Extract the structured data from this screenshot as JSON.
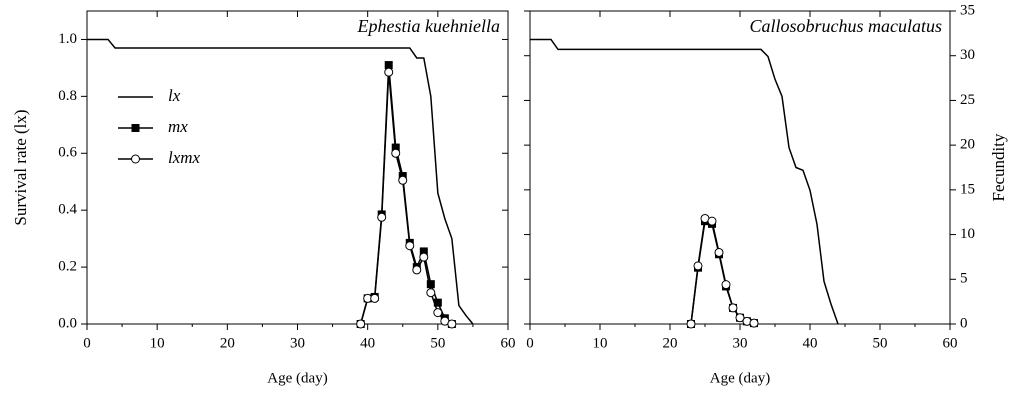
{
  "chart_data": [
    {
      "type": "line",
      "title": "Ephestia kuehniella",
      "x_label": "Age (day)",
      "y_label": "Survival rate (lx)",
      "xlim": [
        0,
        60
      ],
      "xticks": [
        0,
        10,
        20,
        30,
        40,
        50,
        60
      ],
      "ylim": [
        0,
        1.1
      ],
      "yticks": [
        {
          "value": 0,
          "label": "0.0"
        },
        0.2,
        0.4,
        0.6,
        0.8,
        {
          "value": 1,
          "label": "1.0"
        }
      ],
      "legend": true,
      "series": [
        {
          "name": "lx",
          "color": "#000000",
          "marker": "none",
          "x": [
            0,
            3,
            4,
            46,
            47,
            48,
            49,
            50,
            51,
            52,
            53,
            54,
            55
          ],
          "values": [
            1,
            1,
            0.97,
            0.97,
            0.935,
            0.935,
            0.8,
            0.46,
            0.37,
            0.3,
            0.065,
            0.03,
            0
          ]
        },
        {
          "name": "mx",
          "color": "#000000",
          "marker": "square",
          "x": [
            39,
            40,
            41,
            42,
            43,
            44,
            45,
            46,
            47,
            48,
            49,
            50,
            51,
            52
          ],
          "values": [
            0,
            0.09,
            0.095,
            0.385,
            0.91,
            0.62,
            0.52,
            0.285,
            0.2,
            0.255,
            0.14,
            0.075,
            0.02,
            0
          ]
        },
        {
          "name": "lxmx",
          "color": "#000000",
          "marker": "circle",
          "x": [
            39,
            40,
            41,
            42,
            43,
            44,
            45,
            46,
            47,
            48,
            49,
            50,
            51,
            52
          ],
          "values": [
            0,
            0.09,
            0.09,
            0.375,
            0.885,
            0.6,
            0.505,
            0.275,
            0.19,
            0.235,
            0.11,
            0.04,
            0.01,
            0
          ]
        }
      ]
    },
    {
      "type": "line",
      "title": "Callosobruchus maculatus",
      "x_label": "Age (day)",
      "y2_label": "Fecundity",
      "xlim": [
        0,
        60
      ],
      "xticks": [
        0,
        10,
        20,
        30,
        40,
        50,
        60
      ],
      "ylim": [
        0,
        1.1
      ],
      "y2lim": [
        0,
        35
      ],
      "y2ticks": [
        0,
        5,
        10,
        15,
        20,
        25,
        30,
        35
      ],
      "legend": false,
      "series": [
        {
          "name": "lx",
          "color": "#000000",
          "marker": "none",
          "x": [
            0,
            3,
            4,
            33,
            34,
            35,
            36,
            37,
            38,
            39,
            40,
            41,
            42,
            43,
            44
          ],
          "values": [
            1,
            1,
            0.965,
            0.965,
            0.94,
            0.86,
            0.8,
            0.62,
            0.55,
            0.54,
            0.47,
            0.35,
            0.15,
            0.07,
            0
          ]
        },
        {
          "name": "mx",
          "color": "#000000",
          "marker": "square",
          "axis": "y2",
          "x": [
            23,
            24,
            25,
            26,
            27,
            28,
            29,
            30,
            31,
            32
          ],
          "values": [
            0,
            6.3,
            11.5,
            11.2,
            7.8,
            4.2,
            1.8,
            0.7,
            0.3,
            0.1
          ]
        },
        {
          "name": "lxmx",
          "color": "#000000",
          "marker": "circle",
          "axis": "y2",
          "x": [
            23,
            24,
            25,
            26,
            27,
            28,
            29,
            30,
            31,
            32
          ],
          "values": [
            0,
            6.5,
            11.8,
            11.5,
            8,
            4.4,
            1.8,
            0.7,
            0.3,
            0.1
          ]
        }
      ]
    }
  ]
}
